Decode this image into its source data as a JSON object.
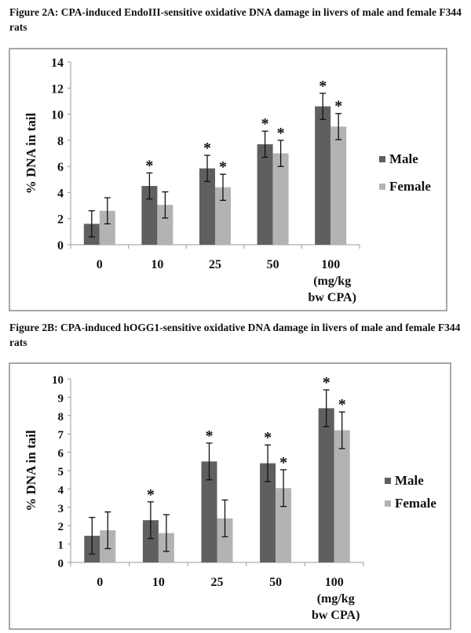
{
  "chart_data": [
    {
      "type": "bar",
      "title": "Figure 2A: CPA-induced EndoIII-sensitive oxidative DNA damage in livers of male and female F344 rats",
      "xlabel": "",
      "ylabel": "% DNA in tail",
      "categories": [
        "0",
        "10",
        "25",
        "50",
        "100"
      ],
      "category_note": [
        "(mg/kg",
        "bw CPA)"
      ],
      "ylim": [
        0,
        14
      ],
      "yticks": [
        0,
        2,
        4,
        6,
        8,
        10,
        12,
        14
      ],
      "legend_position": "right",
      "series": [
        {
          "name": "Male",
          "color": "#5f5f5f",
          "values": [
            1.6,
            4.5,
            5.85,
            7.7,
            10.6
          ],
          "errors": [
            1.0,
            1.0,
            1.0,
            1.0,
            1.0
          ],
          "significant": [
            false,
            true,
            true,
            true,
            true
          ]
        },
        {
          "name": "Female",
          "color": "#b3b3b3",
          "values": [
            2.6,
            3.05,
            4.4,
            7.0,
            9.05
          ],
          "errors": [
            1.0,
            1.0,
            1.0,
            1.0,
            1.0
          ],
          "significant": [
            false,
            false,
            true,
            true,
            true
          ]
        }
      ],
      "significance_marker": "*"
    },
    {
      "type": "bar",
      "title": "Figure 2B: CPA-induced hOGG1-sensitive oxidative DNA damage in livers of male and female F344 rats",
      "xlabel": "",
      "ylabel": "% DNA in tail",
      "categories": [
        "0",
        "10",
        "25",
        "50",
        "100"
      ],
      "category_note": [
        "(mg/kg",
        "bw CPA)"
      ],
      "ylim": [
        0,
        10
      ],
      "yticks": [
        0,
        1,
        2,
        3,
        4,
        5,
        6,
        7,
        8,
        9,
        10
      ],
      "legend_position": "right",
      "series": [
        {
          "name": "Male",
          "color": "#5f5f5f",
          "values": [
            1.45,
            2.3,
            5.5,
            5.4,
            8.4
          ],
          "errors": [
            1.0,
            1.0,
            1.0,
            1.0,
            1.0
          ],
          "significant": [
            false,
            true,
            true,
            true,
            true
          ]
        },
        {
          "name": "Female",
          "color": "#b3b3b3",
          "values": [
            1.75,
            1.6,
            2.4,
            4.05,
            7.2
          ],
          "errors": [
            1.0,
            1.0,
            1.0,
            1.0,
            1.0
          ],
          "significant": [
            false,
            false,
            false,
            true,
            true
          ]
        }
      ],
      "significance_marker": "*"
    }
  ]
}
